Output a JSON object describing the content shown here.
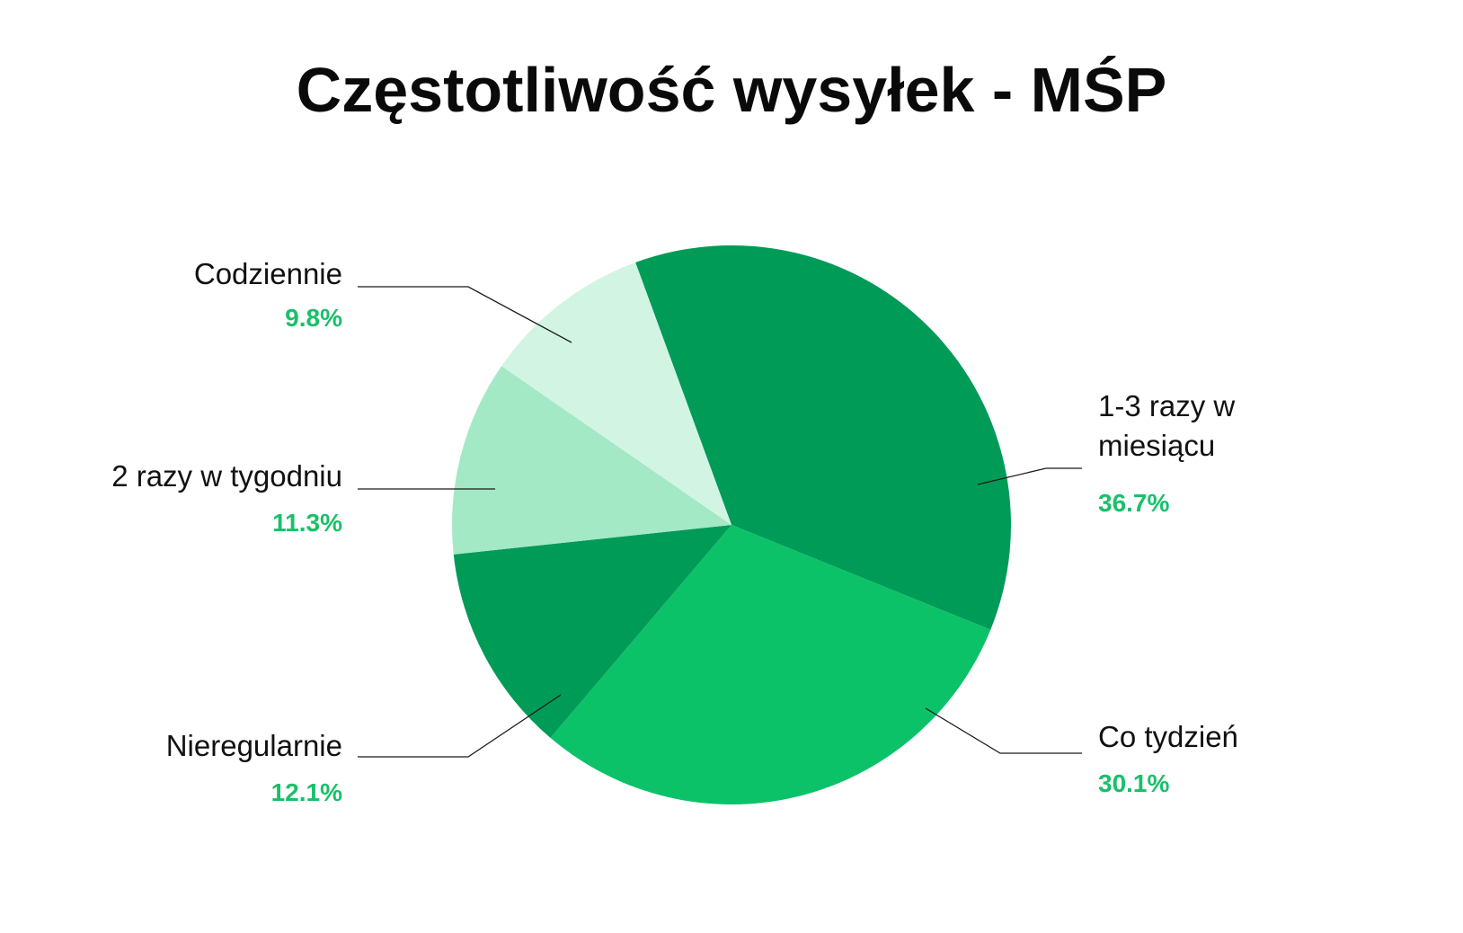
{
  "chart_data": {
    "type": "pie",
    "title": "Częstotliwość wysyłek - MŚP",
    "slices": [
      {
        "label": "1-3 razy w miesiącu",
        "label_lines": [
          "1-3 razy w",
          "miesiącu"
        ],
        "value": 36.7,
        "value_label": "36.7%",
        "color": "#009B57"
      },
      {
        "label": "Co tydzień",
        "label_lines": [
          "Co tydzień"
        ],
        "value": 30.1,
        "value_label": "30.1%",
        "color": "#0CC269"
      },
      {
        "label": "Nieregularnie",
        "label_lines": [
          "Nieregularnie"
        ],
        "value": 12.1,
        "value_label": "12.1%",
        "color": "#009B57"
      },
      {
        "label": "2 razy w tygodniu",
        "label_lines": [
          "2 razy w tygodniu"
        ],
        "value": 11.3,
        "value_label": "11.3%",
        "color": "#A3E9C5"
      },
      {
        "label": "Codziennie",
        "label_lines": [
          "Codziennie"
        ],
        "value": 9.8,
        "value_label": "9.8%",
        "color": "#D2F5E3"
      }
    ],
    "value_label_color": "#19C06A",
    "legend": "none"
  }
}
